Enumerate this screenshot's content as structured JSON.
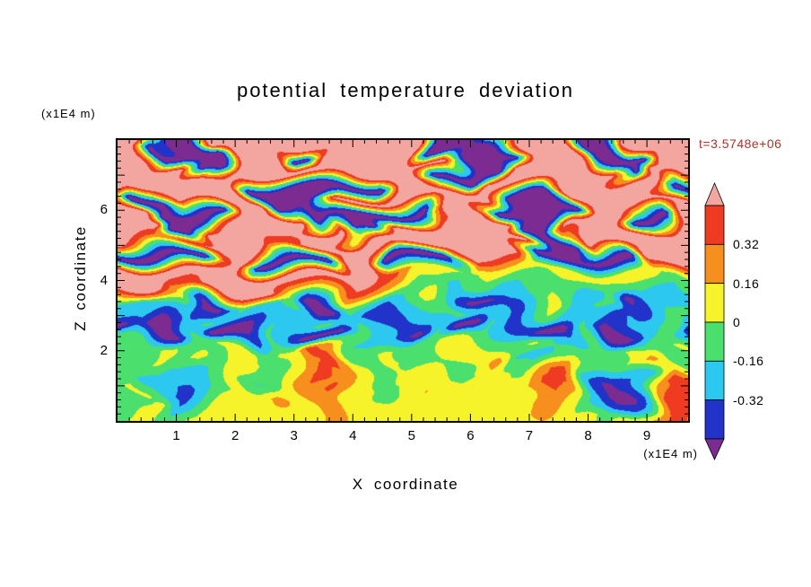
{
  "chart_data": {
    "type": "heatmap",
    "title": "potential temperature deviation",
    "xlabel": "X coordinate",
    "zlabel": "Z coordinate",
    "x_unit_label": "(x1E4 m)",
    "z_unit_label": "(x1E4 m)",
    "annotation": "t=3.5748e+06",
    "annotation_color": "#A0382A",
    "x_range": [
      0,
      9.7
    ],
    "z_range": [
      0,
      8
    ],
    "x_ticks": [
      1,
      2,
      3,
      4,
      5,
      6,
      7,
      8,
      9
    ],
    "z_ticks": [
      2,
      4,
      6
    ],
    "minor_tick_interval": 0.2,
    "grid": false,
    "legend_position": "right-colorbar",
    "colorbar": {
      "labels": [
        "0.32",
        "0.16",
        "0",
        "-0.16",
        "-0.32"
      ],
      "level_bounds": [
        0.48,
        0.32,
        0.16,
        0,
        -0.16,
        -0.32,
        -0.48
      ],
      "colors": {
        "arrow_high": "#F3A5A0",
        "bands": [
          "#EE3B22",
          "#F68F1E",
          "#F6F32A",
          "#4BDF6E",
          "#2CC8EF",
          "#2133C8"
        ],
        "arrow_low": "#7C2B90"
      }
    },
    "field": {
      "values": [
        [
          0.6,
          0.6,
          0.6,
          -0.6,
          -0.6,
          0.6,
          0.6,
          0.6,
          0.6,
          0.6,
          0.6,
          0.6,
          0.6,
          0.6,
          0.6,
          0.6,
          -0.6,
          -0.6,
          -0.6,
          0.6,
          0.6,
          0.6,
          0.6,
          0.6,
          -0.6,
          -0.6,
          0.6,
          0.6,
          0.6,
          0.6
        ],
        [
          0.6,
          0.6,
          -0.6,
          -0.6,
          -0.6,
          -0.6,
          0.6,
          0.6,
          0.6,
          -0.6,
          -0.6,
          0.6,
          0.6,
          0.6,
          0.6,
          0.6,
          -0.6,
          -0.6,
          -0.6,
          -0.6,
          -0.6,
          0.6,
          0.6,
          0.6,
          -0.6,
          -0.6,
          -0.6,
          -0.6,
          0.6,
          0.6
        ],
        [
          0.6,
          0.6,
          0.6,
          0.6,
          -0.6,
          -0.6,
          0.6,
          0.6,
          0.6,
          0.6,
          0.6,
          0.6,
          0.6,
          0.6,
          0.6,
          0.6,
          0.6,
          0.6,
          -0.6,
          -0.6,
          0.6,
          0.6,
          0.6,
          0.6,
          0.6,
          0.6,
          -0.6,
          0.6,
          0.6,
          0.6
        ],
        [
          0.6,
          0.6,
          0.6,
          0.6,
          0.6,
          0.6,
          0.6,
          -0.6,
          -0.6,
          -0.6,
          -0.6,
          -0.6,
          -0.6,
          -0.6,
          0.6,
          0.6,
          -0.6,
          -0.6,
          -0.6,
          0.6,
          0.6,
          0.6,
          0.6,
          0.6,
          0.6,
          0.6,
          0.6,
          0.6,
          -0.6,
          -0.6
        ],
        [
          0.6,
          -0.6,
          -0.6,
          0.6,
          0.6,
          0.6,
          0.6,
          0.6,
          -0.6,
          -0.6,
          -0.6,
          0.6,
          0.6,
          0.6,
          0.6,
          0.6,
          0.6,
          0.6,
          0.6,
          0.6,
          -0.6,
          -0.6,
          -0.6,
          0.6,
          0.6,
          0.6,
          0.6,
          0.6,
          0.6,
          0.6
        ],
        [
          0.6,
          0.6,
          -0.6,
          -0.6,
          -0.6,
          -0.6,
          0.6,
          0.6,
          0.6,
          0.6,
          -0.6,
          -0.6,
          -0.6,
          -0.6,
          -0.6,
          -0.6,
          -0.6,
          0.6,
          0.6,
          -0.6,
          -0.6,
          -0.6,
          -0.6,
          -0.6,
          0.6,
          0.6,
          -0.6,
          -0.6,
          -0.6,
          0.6
        ],
        [
          0.6,
          0.6,
          0.6,
          -0.6,
          -0.6,
          0.6,
          0.6,
          0.6,
          0.6,
          0.6,
          0.6,
          0.6,
          -0.6,
          -0.6,
          0.6,
          0.6,
          0.6,
          0.6,
          0.6,
          0.6,
          0.6,
          -0.6,
          -0.6,
          0.6,
          0.6,
          0.6,
          0.6,
          0.6,
          0.6,
          0.6
        ],
        [
          0.6,
          0.4,
          0.3,
          0.3,
          0.4,
          0.6,
          0.6,
          0.6,
          0.4,
          0.4,
          0.6,
          0.6,
          0.6,
          0.6,
          0.6,
          0.6,
          0.6,
          0.6,
          0.6,
          0.6,
          0.6,
          0.6,
          -0.6,
          -0.6,
          0.6,
          0.6,
          0.6,
          0.6,
          0.6,
          0.6
        ],
        [
          -0.6,
          -0.6,
          -0.6,
          -0.6,
          -0.6,
          0.3,
          0.6,
          -0.6,
          -0.6,
          -0.6,
          -0.6,
          -0.6,
          0.6,
          0.6,
          -0.6,
          -0.6,
          -0.6,
          -0.6,
          0.6,
          0.6,
          0.6,
          -0.6,
          -0.6,
          -0.6,
          -0.6,
          -0.6,
          -0.6,
          0.6,
          0.6,
          0.6
        ],
        [
          0.6,
          0.6,
          0.6,
          0.6,
          0.6,
          0.6,
          0.6,
          0.6,
          0.6,
          0.6,
          0.6,
          0.6,
          0.6,
          0.4,
          0.4,
          0.25,
          0.1,
          0.05,
          0.05,
          0.1,
          0.1,
          0.05,
          0.05,
          0.1,
          0.1,
          0.1,
          0.05,
          0.05,
          -0.1,
          -0.1
        ],
        [
          0.6,
          0.6,
          0.6,
          0.25,
          0.4,
          0.6,
          0.6,
          0.6,
          0.6,
          0.25,
          0.1,
          0.1,
          0.4,
          0.25,
          0.1,
          -0.1,
          -0.1,
          -0.25,
          -0.1,
          -0.1,
          -0.25,
          -0.1,
          -0.1,
          -0.1,
          -0.25,
          -0.1,
          -0.1,
          -0.1,
          -0.25,
          -0.25
        ],
        [
          -0.1,
          -0.25,
          -0.1,
          0.05,
          -0.6,
          -0.6,
          -0.1,
          -0.25,
          -0.25,
          -0.1,
          -0.6,
          -0.6,
          -0.1,
          -0.1,
          -0.25,
          -0.1,
          0.05,
          -0.1,
          -0.6,
          -0.6,
          -0.25,
          -0.1,
          0.05,
          -0.25,
          -0.1,
          -0.1,
          -0.6,
          -0.25,
          -0.1,
          -0.1
        ],
        [
          -0.25,
          -0.25,
          -0.4,
          -0.25,
          -0.25,
          -0.1,
          -0.25,
          -0.4,
          -0.25,
          -0.25,
          -0.1,
          -0.25,
          -0.25,
          -0.4,
          -0.4,
          -0.25,
          -0.25,
          -0.1,
          -0.25,
          -0.25,
          -0.4,
          -0.25,
          -0.1,
          -0.25,
          -0.25,
          -0.4,
          -0.25,
          -0.25,
          -0.1,
          -0.25
        ],
        [
          -0.6,
          -0.4,
          -0.6,
          -0.6,
          -0.1,
          -0.6,
          -0.6,
          -0.6,
          -0.1,
          -0.25,
          -0.6,
          -0.6,
          -0.1,
          -0.25,
          -0.4,
          -0.6,
          -0.1,
          -0.6,
          -0.6,
          -0.1,
          -0.25,
          -0.4,
          -0.6,
          -0.6,
          -0.1,
          -0.6,
          -0.6,
          -0.4,
          -0.1,
          -0.6
        ],
        [
          -0.1,
          -0.1,
          0.05,
          -0.1,
          -0.1,
          0.05,
          0.05,
          -0.1,
          0.05,
          0.05,
          0.4,
          0.25,
          -0.1,
          -0.1,
          0.05,
          -0.1,
          -0.1,
          0.05,
          0.05,
          -0.1,
          -0.1,
          0.05,
          -0.1,
          -0.25,
          -0.1,
          0.05,
          0.05,
          -0.1,
          -0.1,
          0.05
        ],
        [
          -0.1,
          0.05,
          0.05,
          -0.1,
          0.05,
          -0.1,
          0.05,
          0.05,
          -0.1,
          0.05,
          0.25,
          0.4,
          0.05,
          -0.1,
          0.05,
          0.05,
          -0.1,
          0.05,
          0.05,
          0.25,
          -0.25,
          -0.25,
          -0.1,
          0.05,
          -0.1,
          -0.1,
          0.05,
          0.25,
          0.05,
          -0.1
        ],
        [
          -0.1,
          -0.1,
          -0.25,
          -0.25,
          -0.25,
          -0.1,
          0.05,
          -0.1,
          -0.1,
          0.05,
          0.4,
          0.25,
          0.05,
          -0.1,
          0.05,
          0.05,
          0.05,
          -0.1,
          0.05,
          0.05,
          0.05,
          -0.1,
          0.25,
          0.4,
          -0.25,
          -0.5,
          -0.5,
          -0.25,
          0.4,
          0.25
        ],
        [
          -0.1,
          0.05,
          -0.25,
          -0.4,
          -0.25,
          -0.1,
          0.05,
          0.05,
          0.25,
          0.05,
          0.25,
          0.4,
          0.05,
          0.05,
          -0.1,
          0.05,
          0.1,
          0.05,
          0.05,
          0.1,
          0.05,
          0.25,
          0.4,
          0.25,
          -0.25,
          -0.6,
          -0.5,
          -0.25,
          0.25,
          0.4
        ],
        [
          -0.1,
          -0.1,
          0.05,
          -0.25,
          -0.1,
          0.05,
          0.05,
          0.1,
          0.05,
          0.05,
          0.1,
          0.25,
          0.1,
          0.05,
          0.1,
          0.1,
          0.1,
          0.1,
          0.05,
          0.05,
          0.05,
          0.1,
          0.25,
          0.1,
          -0.25,
          -0.4,
          -0.25,
          0.05,
          0.4,
          0.4
        ],
        [
          -0.1,
          0.05,
          0.05,
          -0.1,
          0.05,
          0.1,
          0.05,
          0.1,
          0.1,
          0.05,
          0.05,
          0.1,
          0.05,
          0.1,
          0.1,
          0.1,
          0.05,
          0.1,
          0.05,
          0.1,
          0.1,
          0.05,
          0.1,
          0.05,
          0.05,
          -0.1,
          0.05,
          0.25,
          0.4,
          0.25
        ]
      ]
    }
  }
}
